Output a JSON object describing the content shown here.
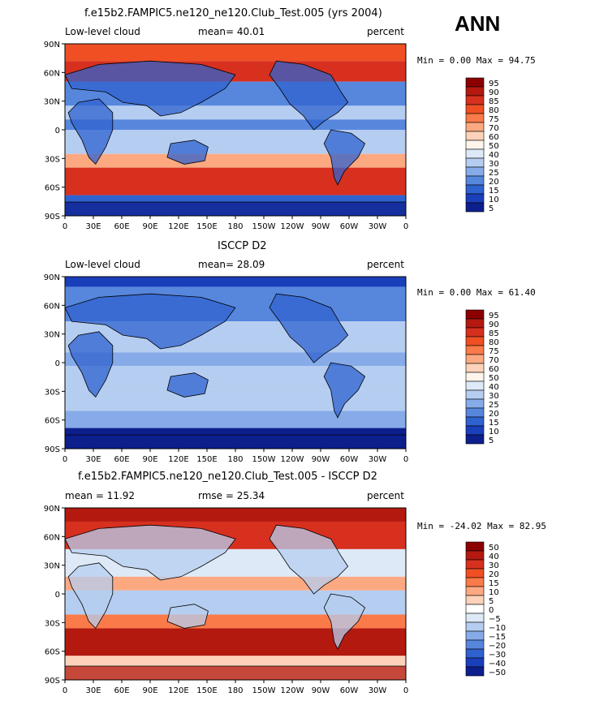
{
  "season": "ANN",
  "panels": [
    {
      "id": "model",
      "title": "f.e15b2.FAMPIC5.ne120_ne120.Club_Test.005 (yrs 2004)",
      "left_label": "Low-level cloud",
      "center_label": "mean=  40.01",
      "right_label": "percent",
      "min_max": "Min =   0.00 Max =  94.75",
      "colorbar": [
        "95",
        "90",
        "85",
        "80",
        "75",
        "70",
        "60",
        "50",
        "40",
        "30",
        "25",
        "20",
        "15",
        "10",
        "5"
      ],
      "colors": [
        "#8b0000",
        "#b3190f",
        "#d7301f",
        "#f04f23",
        "#fb7a4a",
        "#fca982",
        "#fdd2ba",
        "#fff5ea",
        "#dde9f7",
        "#b5cdf0",
        "#86abe8",
        "#5787dd",
        "#2f62cf",
        "#1a3fbb",
        "#0d1f8d"
      ]
    },
    {
      "id": "obs",
      "title": "ISCCP D2",
      "left_label": "Low-level cloud",
      "center_label": "mean=  28.09",
      "right_label": "percent",
      "min_max": "Min =   0.00 Max =  61.40",
      "colorbar": [
        "95",
        "90",
        "85",
        "80",
        "75",
        "70",
        "60",
        "50",
        "40",
        "30",
        "25",
        "20",
        "15",
        "10",
        "5"
      ],
      "colors": [
        "#8b0000",
        "#b3190f",
        "#d7301f",
        "#f04f23",
        "#fb7a4a",
        "#fca982",
        "#fdd2ba",
        "#fff5ea",
        "#dde9f7",
        "#b5cdf0",
        "#86abe8",
        "#5787dd",
        "#2f62cf",
        "#1a3fbb",
        "#0d1f8d"
      ]
    },
    {
      "id": "diff",
      "title": "f.e15b2.FAMPIC5.ne120_ne120.Club_Test.005 - ISCCP D2",
      "left_label": "mean =  11.92",
      "center_label": "rmse =  25.34",
      "right_label": "percent",
      "min_max": "Min = -24.02 Max =  82.95",
      "colorbar": [
        "50",
        "40",
        "30",
        "20",
        "15",
        "10",
        "5",
        "0",
        "−5",
        "−10",
        "−15",
        "−20",
        "−30",
        "−40",
        "−50"
      ],
      "colors": [
        "#8b0000",
        "#b3190f",
        "#d7301f",
        "#f04f23",
        "#fb7a4a",
        "#fca982",
        "#fdd2ba",
        "#ffffff",
        "#dde9f7",
        "#b5cdf0",
        "#86abe8",
        "#5787dd",
        "#2f62cf",
        "#1a3fbb",
        "#0d1f8d"
      ]
    }
  ],
  "lat_labels": [
    "90N",
    "60N",
    "30N",
    "0",
    "30S",
    "60S",
    "90S"
  ],
  "lon_labels": [
    "0",
    "30E",
    "60E",
    "90E",
    "120E",
    "150E",
    "180",
    "150W",
    "120W",
    "90W",
    "60W",
    "30W",
    "0"
  ]
}
